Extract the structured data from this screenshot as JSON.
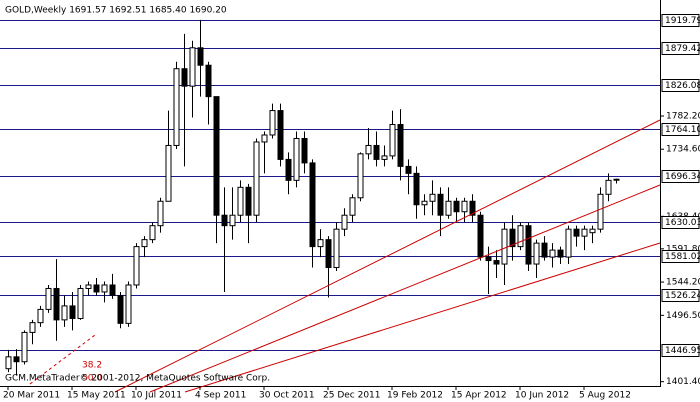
{
  "chart_data": {
    "type": "candlestick",
    "title": "GOLD,Weekly  1691.57 1692.51 1685.40 1690.20",
    "footer": "GCM.MetaTrader© 2001-2012, MetaQuotes Software Corp.",
    "annotations": [
      "38.2",
      "50.0"
    ],
    "categories": [
      "20 Mar 2011",
      null,
      null,
      null,
      null,
      null,
      null,
      null,
      "15 May 2011",
      null,
      null,
      null,
      null,
      null,
      null,
      null,
      "10 Jul 2011",
      null,
      null,
      null,
      null,
      null,
      null,
      null,
      "4 Sep 2011",
      null,
      null,
      null,
      null,
      null,
      null,
      null,
      "30 Oct 2011",
      null,
      null,
      null,
      null,
      null,
      null,
      null,
      "25 Dec 2011",
      null,
      null,
      null,
      null,
      null,
      null,
      null,
      "19 Feb 2012",
      null,
      null,
      null,
      null,
      null,
      null,
      null,
      "15 Apr 2012",
      null,
      null,
      null,
      null,
      null,
      null,
      null,
      "10 Jun 2012",
      null,
      null,
      null,
      null,
      null,
      null,
      null,
      "5 Aug 2012",
      null,
      null,
      null,
      null
    ],
    "open": [
      1420,
      1437,
      1430,
      1472,
      1486,
      1505,
      1535,
      1490,
      1510,
      1492,
      1535,
      1540,
      1530,
      1540,
      1525,
      1485,
      1540,
      1595,
      1605,
      1625,
      1660,
      1740,
      1850,
      1825,
      1880,
      1855,
      1810,
      1640,
      1625,
      1640,
      1680,
      1640,
      1745,
      1755,
      1790,
      1720,
      1690,
      1750,
      1715,
      1595,
      1605,
      1565,
      1620,
      1640,
      1665,
      1728,
      1740,
      1720,
      1725,
      1770,
      1710,
      1700,
      1655,
      1660,
      1670,
      1640,
      1660,
      1645,
      1660,
      1640,
      1580,
      1575,
      1570,
      1620,
      1595,
      1625,
      1570,
      1600,
      1580,
      1590,
      1580,
      1620,
      1610,
      1615,
      1620,
      1670,
      1691.57
    ],
    "high": [
      1447,
      1448,
      1475,
      1490,
      1510,
      1540,
      1577,
      1525,
      1530,
      1540,
      1545,
      1550,
      1545,
      1556,
      1530,
      1545,
      1600,
      1610,
      1630,
      1665,
      1790,
      1860,
      1900,
      1890,
      1920,
      1860,
      1810,
      1680,
      1680,
      1690,
      1685,
      1750,
      1760,
      1800,
      1800,
      1730,
      1760,
      1760,
      1720,
      1620,
      1610,
      1630,
      1650,
      1670,
      1730,
      1765,
      1760,
      1740,
      1790,
      1792,
      1720,
      1710,
      1670,
      1690,
      1680,
      1680,
      1665,
      1665,
      1670,
      1645,
      1595,
      1590,
      1630,
      1640,
      1630,
      1630,
      1605,
      1610,
      1600,
      1595,
      1625,
      1625,
      1625,
      1625,
      1680,
      1700,
      1692.51
    ],
    "low": [
      1415,
      1410,
      1426,
      1455,
      1480,
      1500,
      1460,
      1480,
      1475,
      1490,
      1525,
      1525,
      1515,
      1520,
      1478,
      1480,
      1535,
      1580,
      1600,
      1615,
      1660,
      1735,
      1710,
      1780,
      1810,
      1770,
      1600,
      1530,
      1605,
      1630,
      1600,
      1630,
      1700,
      1750,
      1710,
      1670,
      1680,
      1700,
      1565,
      1580,
      1522,
      1560,
      1610,
      1630,
      1660,
      1720,
      1710,
      1710,
      1720,
      1690,
      1670,
      1635,
      1640,
      1640,
      1610,
      1635,
      1630,
      1630,
      1630,
      1575,
      1527,
      1550,
      1540,
      1575,
      1590,
      1560,
      1550,
      1575,
      1565,
      1570,
      1570,
      1595,
      1590,
      1600,
      1615,
      1660,
      1685.4
    ],
    "close": [
      1437,
      1430,
      1472,
      1486,
      1505,
      1535,
      1490,
      1510,
      1492,
      1535,
      1540,
      1530,
      1540,
      1525,
      1485,
      1540,
      1595,
      1605,
      1625,
      1660,
      1740,
      1850,
      1825,
      1880,
      1855,
      1810,
      1640,
      1625,
      1640,
      1680,
      1640,
      1745,
      1755,
      1790,
      1720,
      1690,
      1750,
      1715,
      1595,
      1605,
      1565,
      1620,
      1640,
      1665,
      1728,
      1740,
      1720,
      1725,
      1770,
      1710,
      1700,
      1655,
      1660,
      1670,
      1640,
      1660,
      1645,
      1660,
      1640,
      1580,
      1575,
      1570,
      1620,
      1595,
      1625,
      1570,
      1600,
      1580,
      1590,
      1580,
      1620,
      1610,
      1620,
      1620,
      1670,
      1690,
      1690.2
    ],
    "ylim": [
      1395.2,
      1948.5
    ],
    "yticks": [
      {
        "value": 1782.2,
        "label": "1782.20"
      },
      {
        "value": 1734.6,
        "label": "1734.60"
      },
      {
        "value": 1638.4,
        "label": "1638.40"
      },
      {
        "value": 1591.8,
        "label": "1591.80"
      },
      {
        "value": 1544.2,
        "label": "1544.20"
      },
      {
        "value": 1496.5,
        "label": "1496.50"
      },
      {
        "value": 1401.4,
        "label": "1401.40"
      }
    ],
    "levels": [
      1919.79,
      1879.42,
      1826.08,
      {
        "value": 1764.1,
        "label": "1764.10"
      },
      1696.34,
      1630.03,
      1581.02,
      1526.24,
      1446.95
    ],
    "up_color": "#ffffff",
    "down_color": "#000000",
    "level_color": "#1a1a8c"
  }
}
